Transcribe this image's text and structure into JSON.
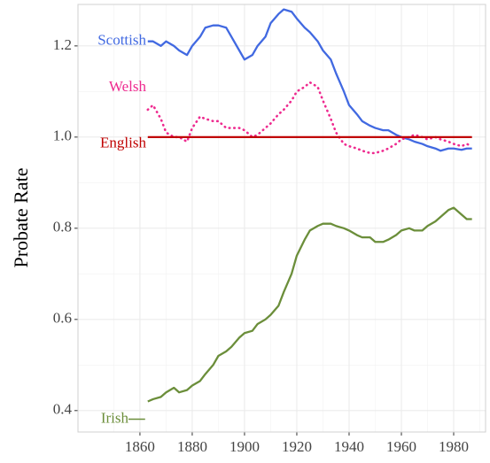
{
  "chart_data": {
    "type": "line",
    "ylabel": "Probate Rate",
    "x": [
      1863,
      1865,
      1868,
      1870,
      1873,
      1875,
      1878,
      1880,
      1883,
      1885,
      1888,
      1890,
      1893,
      1895,
      1898,
      1900,
      1903,
      1905,
      1908,
      1910,
      1913,
      1915,
      1918,
      1920,
      1923,
      1925,
      1928,
      1930,
      1933,
      1935,
      1938,
      1940,
      1943,
      1945,
      1948,
      1950,
      1953,
      1955,
      1958,
      1960,
      1963,
      1965,
      1968,
      1970,
      1973,
      1975,
      1978,
      1980,
      1983,
      1985,
      1987
    ],
    "series": [
      {
        "name": "Scottish",
        "color": "#4169e1",
        "values": [
          1.21,
          1.21,
          1.2,
          1.21,
          1.2,
          1.19,
          1.18,
          1.2,
          1.22,
          1.24,
          1.245,
          1.245,
          1.24,
          1.22,
          1.19,
          1.17,
          1.18,
          1.2,
          1.22,
          1.25,
          1.27,
          1.28,
          1.275,
          1.26,
          1.24,
          1.23,
          1.21,
          1.19,
          1.17,
          1.14,
          1.1,
          1.07,
          1.05,
          1.035,
          1.025,
          1.02,
          1.015,
          1.015,
          1.005,
          1.0,
          0.995,
          0.99,
          0.985,
          0.98,
          0.975,
          0.97,
          0.975,
          0.975,
          0.972,
          0.975,
          0.975
        ]
      },
      {
        "name": "Welsh",
        "color": "#ee2a8f",
        "dashed": true,
        "values": [
          1.06,
          1.07,
          1.04,
          1.01,
          1.0,
          1.0,
          0.99,
          1.02,
          1.045,
          1.04,
          1.035,
          1.035,
          1.02,
          1.02,
          1.02,
          1.015,
          1.0,
          1.005,
          1.02,
          1.03,
          1.05,
          1.06,
          1.08,
          1.1,
          1.11,
          1.12,
          1.11,
          1.08,
          1.04,
          1.01,
          0.985,
          0.98,
          0.975,
          0.97,
          0.965,
          0.965,
          0.97,
          0.975,
          0.985,
          0.995,
          1.0,
          1.005,
          1.0,
          0.995,
          1.0,
          0.995,
          0.99,
          0.985,
          0.98,
          0.985,
          0.98
        ]
      },
      {
        "name": "English",
        "color": "#c00000",
        "values": [
          1,
          1,
          1,
          1,
          1,
          1,
          1,
          1,
          1,
          1,
          1,
          1,
          1,
          1,
          1,
          1,
          1,
          1,
          1,
          1,
          1,
          1,
          1,
          1,
          1,
          1,
          1,
          1,
          1,
          1,
          1,
          1,
          1,
          1,
          1,
          1,
          1,
          1,
          1,
          1,
          1,
          1,
          1,
          1,
          1,
          1,
          1,
          1,
          1,
          1,
          1
        ]
      },
      {
        "name": "Irish",
        "color": "#6b8e3a",
        "values": [
          0.42,
          0.425,
          0.43,
          0.44,
          0.45,
          0.44,
          0.445,
          0.455,
          0.465,
          0.48,
          0.5,
          0.52,
          0.53,
          0.54,
          0.56,
          0.57,
          0.575,
          0.59,
          0.6,
          0.61,
          0.63,
          0.66,
          0.7,
          0.74,
          0.775,
          0.795,
          0.805,
          0.81,
          0.81,
          0.805,
          0.8,
          0.795,
          0.785,
          0.78,
          0.78,
          0.77,
          0.77,
          0.775,
          0.785,
          0.795,
          0.8,
          0.795,
          0.795,
          0.805,
          0.815,
          0.825,
          0.84,
          0.845,
          0.83,
          0.82,
          0.82
        ]
      }
    ],
    "xlim": [
      1836.3,
      1992.2
    ],
    "ylim": [
      0.353,
      1.291
    ],
    "xticks": [
      1860,
      1880,
      1900,
      1920,
      1940,
      1960,
      1980
    ],
    "yticks": [
      0.4,
      0.6,
      0.8,
      {
        "value": 1,
        "label": "1.0"
      },
      1.2
    ],
    "grid": true
  }
}
